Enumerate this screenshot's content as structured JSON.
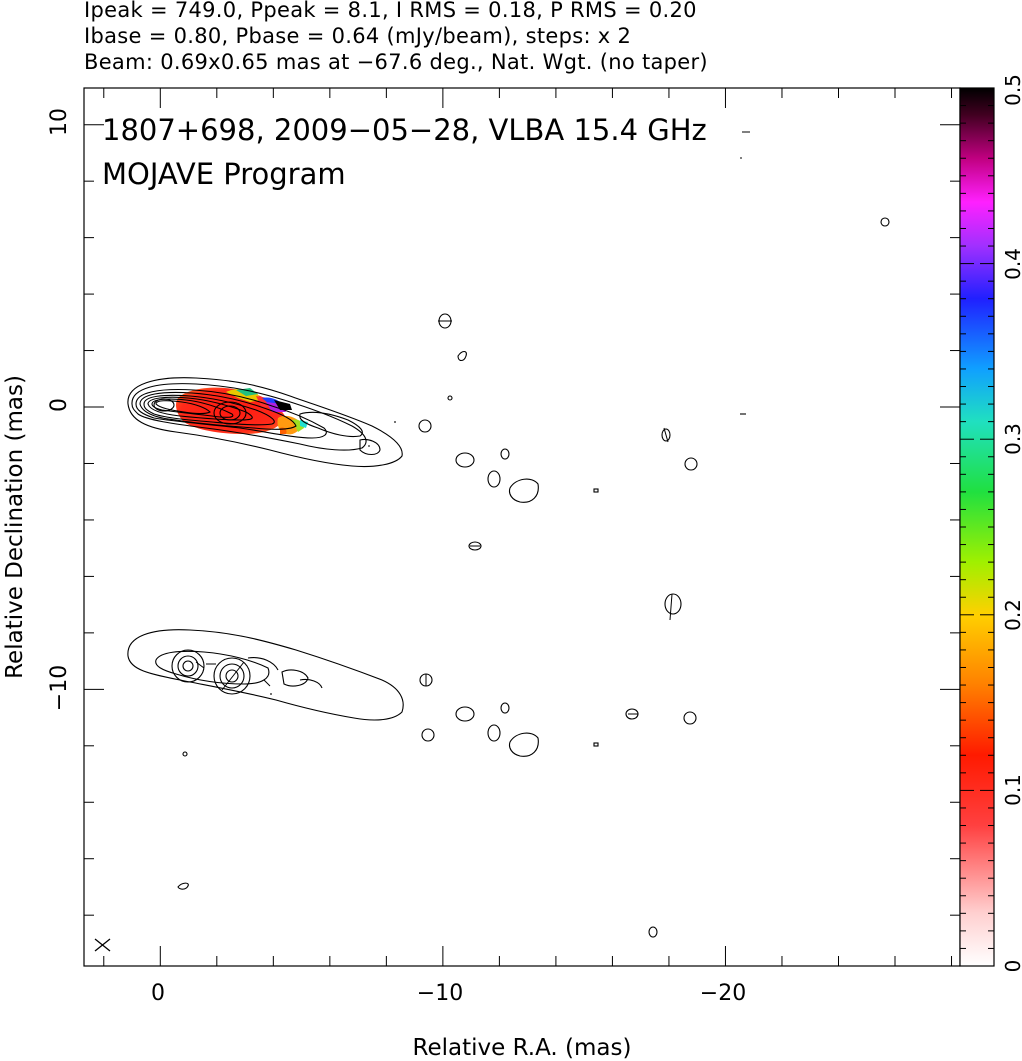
{
  "header": {
    "line1": "Ipeak = 749.0, Ppeak = 8.1, I RMS = 0.18, P RMS = 0.20",
    "line2": "Ibase = 0.80, Pbase = 0.64 (mJy/beam), steps: x 2",
    "line3": "Beam: 0.69x0.65 mas at −67.6 deg., Nat. Wgt. (no taper)"
  },
  "chart_data": {
    "type": "contour",
    "title_line1": "1807+698, 2009−05−28, VLBA 15.4 GHz",
    "title_line2": "MOJAVE Program",
    "xlabel": "Relative R.A. (mas)",
    "ylabel": "Relative Declination (mas)",
    "xlim": [
      2.7,
      -28.3
    ],
    "ylim": [
      -19.8,
      11.3
    ],
    "x_ticks": [
      0,
      -10,
      -20
    ],
    "x_tick_labels": [
      "0",
      "−10",
      "−20"
    ],
    "y_ticks": [
      10,
      0,
      -10
    ],
    "y_tick_labels": [
      "10",
      "0",
      "−10"
    ],
    "colorbar": {
      "min": 0,
      "max": 0.5,
      "ticks": [
        0,
        0.1,
        0.2,
        0.3,
        0.4,
        0.5
      ],
      "tick_labels": [
        "0",
        "0.1",
        "0.2",
        "0.3",
        "0.4",
        "0.5"
      ]
    },
    "core_position_mas": [
      0,
      0
    ],
    "lower_panel_core_mas": [
      0,
      -9.2
    ],
    "beam": {
      "major_mas": 0.69,
      "minor_mas": 0.65,
      "pa_deg": -67.6
    }
  },
  "colors": {
    "contour": "#000000",
    "frac_pol_peak": "#ff2a1a",
    "frac_pol_edge": "#22d4d4",
    "frac_pol_high": "#1a1aff"
  }
}
